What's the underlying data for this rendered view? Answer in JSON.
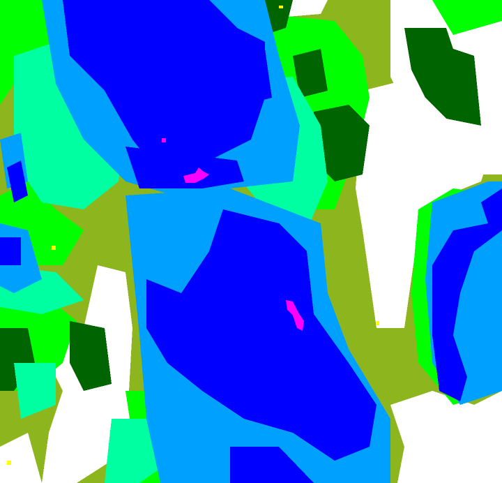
{
  "map": {
    "type": "classified-raster",
    "classes": [
      {
        "id": "white",
        "color": "#ffffff"
      },
      {
        "id": "olive",
        "color": "#8db51e"
      },
      {
        "id": "yellow",
        "color": "#ffff00"
      },
      {
        "id": "green",
        "color": "#00ff00"
      },
      {
        "id": "dark-green",
        "color": "#006400"
      },
      {
        "id": "aqua",
        "color": "#00ffa0"
      },
      {
        "id": "light-blue",
        "color": "#00a0ff"
      },
      {
        "id": "blue",
        "color": "#0000ff"
      },
      {
        "id": "magenta",
        "color": "#ff00ff"
      }
    ]
  }
}
